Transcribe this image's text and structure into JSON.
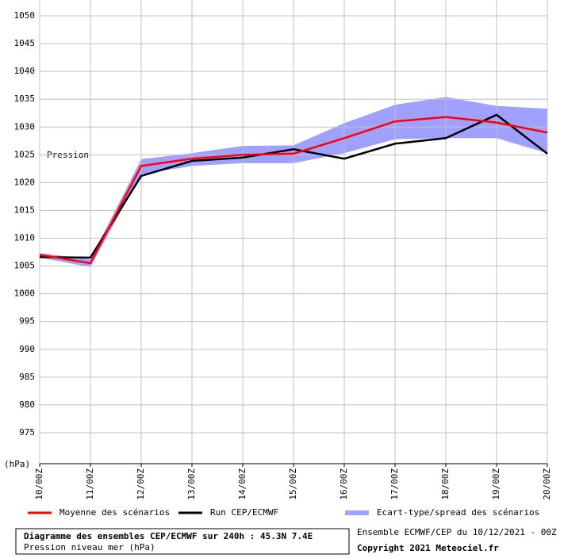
{
  "chart_data": {
    "type": "line",
    "y_label": "(hPa)",
    "annotation": "Pression",
    "categories": [
      "10/00Z",
      "11/00Z",
      "12/00Z",
      "13/00Z",
      "14/00Z",
      "15/00Z",
      "16/00Z",
      "17/00Z",
      "18/00Z",
      "19/00Z",
      "20/00Z"
    ],
    "series": [
      {
        "name": "Moyenne des scénarios",
        "color": "#ff0000",
        "values": [
          1007,
          1005.5,
          1023,
          1024.3,
          1025,
          1025.2,
          1028,
          1031,
          1031.8,
          1030.8,
          1029
        ]
      },
      {
        "name": "Run CEP/ECMWF",
        "color": "#000000",
        "values": [
          1006.6,
          1006.5,
          1021.2,
          1023.9,
          1024.5,
          1026,
          1024.3,
          1027,
          1028,
          1032.2,
          1025.2
        ]
      },
      {
        "name": "Ecart-type/spread des scénarios",
        "color": "#a0a0ff",
        "lower": [
          1006.5,
          1004.8,
          1021.5,
          1023,
          1023.5,
          1023.5,
          1025.3,
          1027.8,
          1028,
          1028,
          1025.3
        ],
        "upper": [
          1007.3,
          1006.2,
          1024.2,
          1025.3,
          1026.6,
          1026.7,
          1030.7,
          1034,
          1035.4,
          1033.8,
          1033.3
        ]
      }
    ],
    "ylim": [
      970,
      1050
    ],
    "yticks": [
      975,
      980,
      985,
      990,
      995,
      1000,
      1005,
      1010,
      1015,
      1020,
      1025,
      1030,
      1035,
      1040,
      1045,
      1050
    ],
    "grid": true
  },
  "footer": {
    "title": "Diagramme des ensembles CEP/ECMWF sur 240h : 45.3N 7.4E",
    "subtitle": "Pression niveau mer (hPa)",
    "run": "Ensemble ECMWF/CEP du 10/12/2021 - 00Z",
    "copyright": "Copyright 2021 Meteociel.fr"
  }
}
